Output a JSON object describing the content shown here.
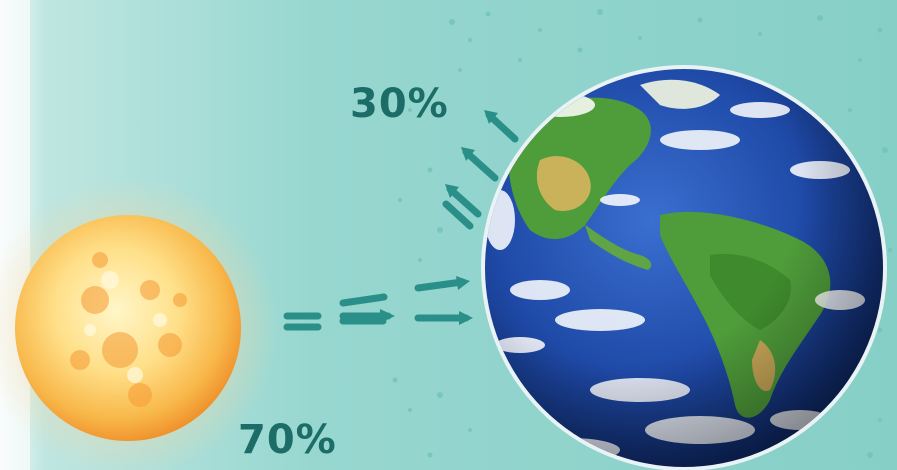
{
  "labels": {
    "reflected_percent": "30%",
    "absorbed_percent": "70%"
  },
  "colors": {
    "label_text": "#1c6c67",
    "arrow": "#2a8f88",
    "background_teal": "#8ed2cb",
    "sun_core": "#fff2b8",
    "sun_edge": "#f7a63a",
    "ocean": "#1f4aa8",
    "land": "#4f9c3a"
  },
  "icons": {
    "sun": "sun-illustration",
    "earth": "earth-globe-illustration",
    "arrows": "radiation-arrows"
  }
}
